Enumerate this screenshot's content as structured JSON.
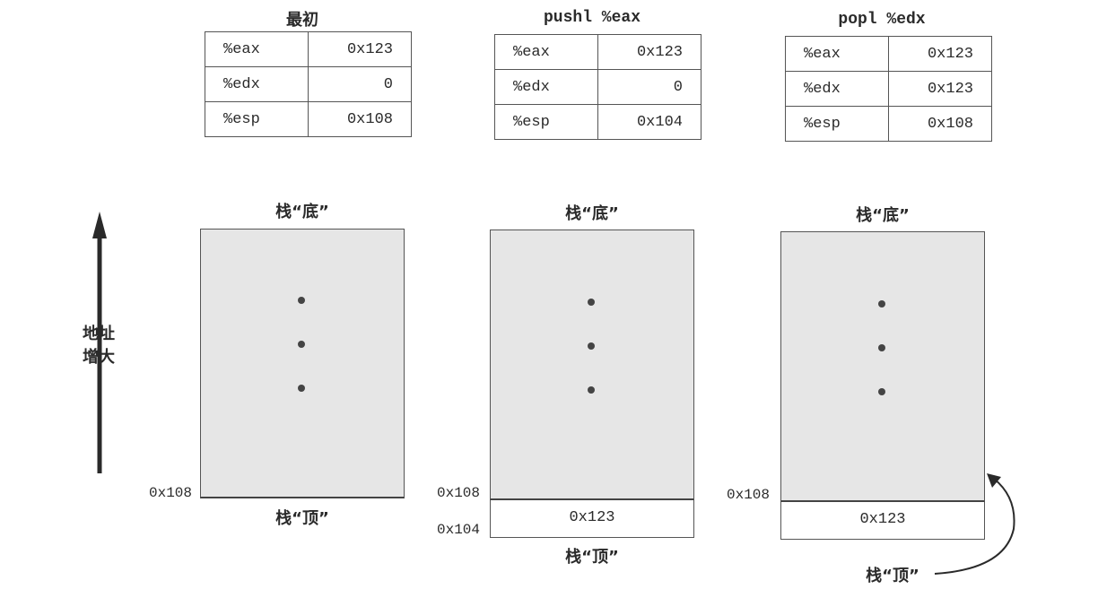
{
  "axis": {
    "label_line1": "地址",
    "label_line2": "增大"
  },
  "panels": [
    {
      "title": "最初",
      "registers": [
        {
          "name": "%eax",
          "value": "0x123"
        },
        {
          "name": "%edx",
          "value": "0"
        },
        {
          "name": "%esp",
          "value": "0x108"
        }
      ],
      "stack_bottom_label": "栈“底”",
      "stack_top_label": "栈“顶”",
      "address_108": "0x108"
    },
    {
      "title": "pushl %eax",
      "registers": [
        {
          "name": "%eax",
          "value": "0x123"
        },
        {
          "name": "%edx",
          "value": "0"
        },
        {
          "name": "%esp",
          "value": "0x104"
        }
      ],
      "stack_bottom_label": "栈“底”",
      "stack_top_label": "栈“顶”",
      "address_108": "0x108",
      "address_104": "0x104",
      "pushed_value": "0x123"
    },
    {
      "title": "popl %edx",
      "registers": [
        {
          "name": "%eax",
          "value": "0x123"
        },
        {
          "name": "%edx",
          "value": "0x123"
        },
        {
          "name": "%esp",
          "value": "0x108"
        }
      ],
      "stack_bottom_label": "栈“底”",
      "stack_top_label": "栈“顶”",
      "address_108": "0x108",
      "stale_value": "0x123"
    }
  ]
}
